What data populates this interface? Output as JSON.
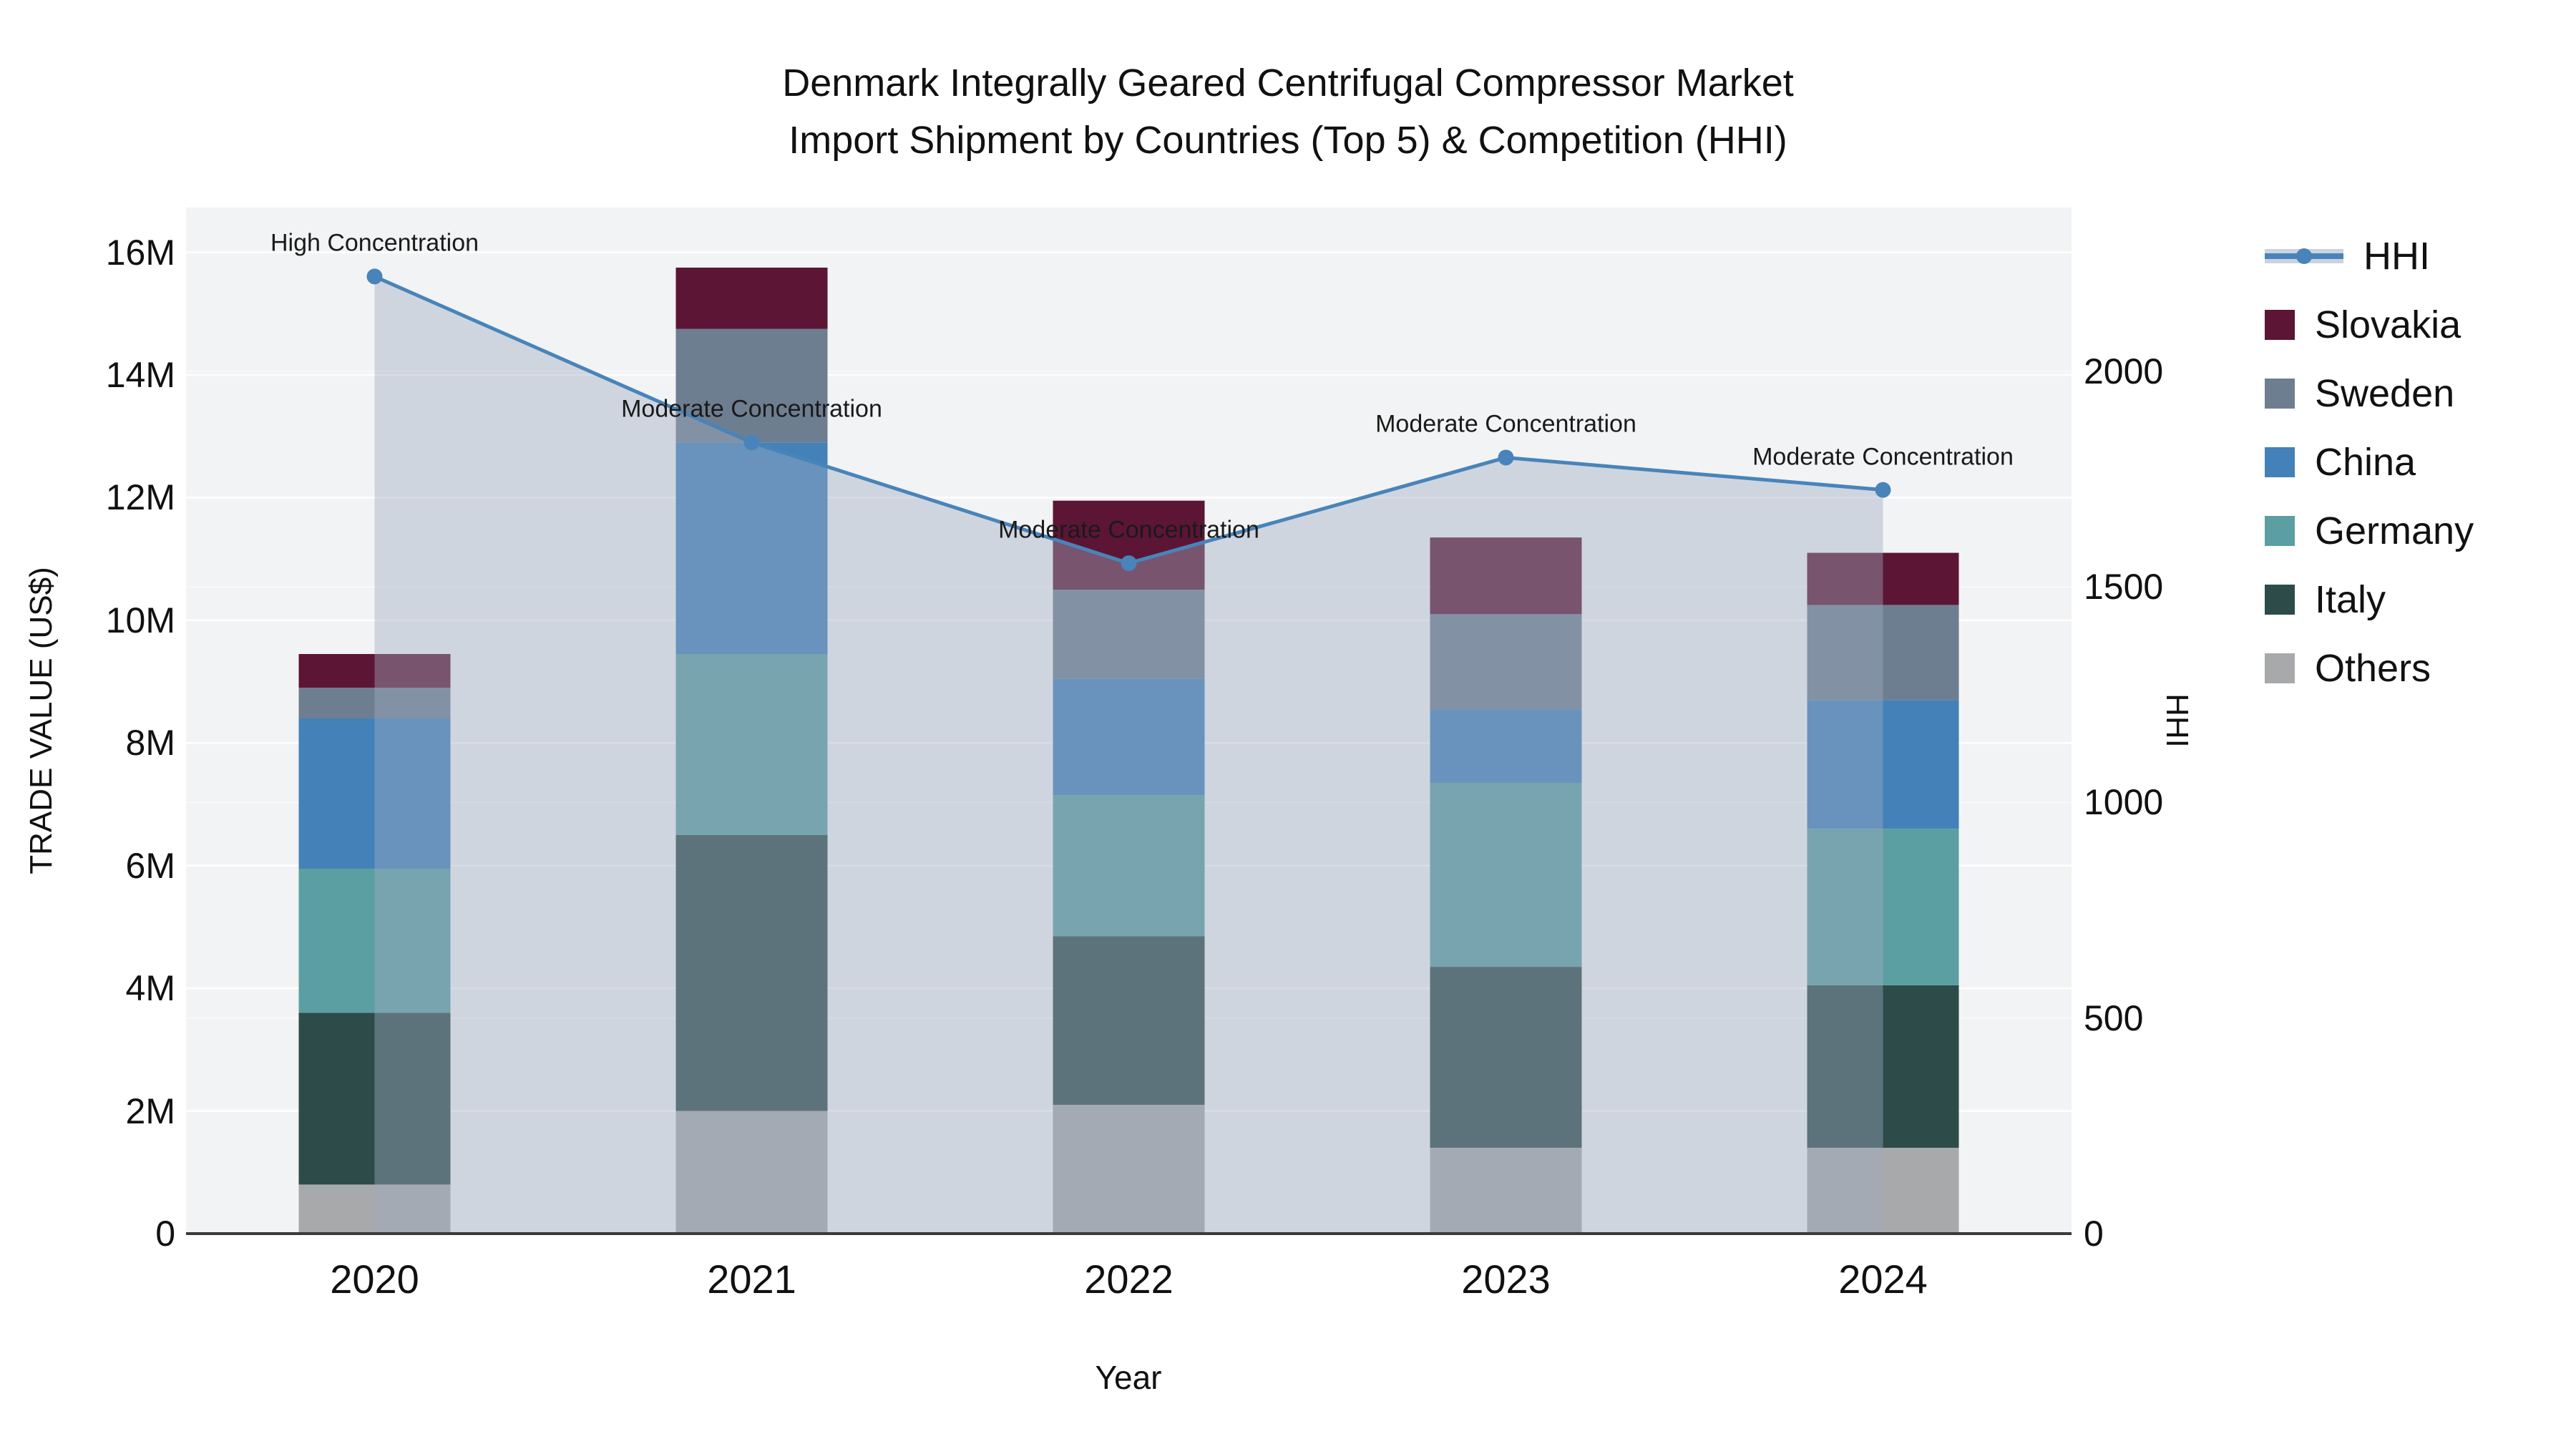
{
  "title": {
    "line1": "Denmark Integrally Geared Centrifugal Compressor Market",
    "line2": "Import Shipment by Countries (Top 5) & Competition (HHI)"
  },
  "axis": {
    "x_title": "Year",
    "x_ticks": [
      "2020",
      "2021",
      "2022",
      "2023",
      "2024"
    ],
    "y_left_title": "TRADE VALUE (US$)",
    "y_left_ticks": [
      "0",
      "2M",
      "4M",
      "6M",
      "8M",
      "10M",
      "12M",
      "14M",
      "16M"
    ],
    "y_right_title": "HHI",
    "y_right_ticks": [
      "0",
      "500",
      "1000",
      "1500",
      "2000"
    ]
  },
  "legend": {
    "items": [
      {
        "label": "HHI",
        "swatch": "hhi-line",
        "color": "#4884ba"
      },
      {
        "label": "Slovakia",
        "swatch": "square",
        "color": "#5c1535"
      },
      {
        "label": "Sweden",
        "swatch": "square",
        "color": "#6e7e91"
      },
      {
        "label": "China",
        "swatch": "square",
        "color": "#4381b8"
      },
      {
        "label": "Germany",
        "swatch": "square",
        "color": "#5c9fa2"
      },
      {
        "label": "Italy",
        "swatch": "square",
        "color": "#2d4b49"
      },
      {
        "label": "Others",
        "swatch": "square",
        "color": "#a8a9ab"
      }
    ]
  },
  "annotations": [
    {
      "year": "2020",
      "text": "High Concentration"
    },
    {
      "year": "2021",
      "text": "Moderate Concentration"
    },
    {
      "year": "2022",
      "text": "Moderate Concentration"
    },
    {
      "year": "2023",
      "text": "Moderate Concentration"
    },
    {
      "year": "2024",
      "text": "Moderate Concentration"
    }
  ],
  "chart_data": {
    "type": "bar",
    "subtype": "stacked-bars-with-secondary-axis-line",
    "title": "Denmark Integrally Geared Centrifugal Compressor Market Import Shipment by Countries (Top 5) & Competition (HHI)",
    "categories": [
      "2020",
      "2021",
      "2022",
      "2023",
      "2024"
    ],
    "xlabel": "Year",
    "ylabel_left": "TRADE VALUE (US$)",
    "ylabel_right": "HHI",
    "bar_value_unit": "US$ millions",
    "series": [
      {
        "name": "Slovakia",
        "color": "#5c1535",
        "values": [
          0.55,
          1.0,
          1.45,
          1.25,
          0.85
        ]
      },
      {
        "name": "Sweden",
        "color": "#6e7e91",
        "values": [
          0.5,
          1.85,
          1.45,
          1.55,
          1.55
        ]
      },
      {
        "name": "China",
        "color": "#4381b8",
        "values": [
          2.45,
          3.45,
          1.9,
          1.2,
          2.1
        ]
      },
      {
        "name": "Germany",
        "color": "#5c9fa2",
        "values": [
          2.35,
          2.95,
          2.3,
          3.0,
          2.55
        ]
      },
      {
        "name": "Italy",
        "color": "#2d4b49",
        "values": [
          2.8,
          4.5,
          2.75,
          2.95,
          2.65
        ]
      },
      {
        "name": "Others",
        "color": "#a8a9ab",
        "values": [
          0.8,
          2.0,
          2.1,
          1.4,
          1.4
        ]
      }
    ],
    "stack_order_bottom_to_top": [
      "Others",
      "Italy",
      "Germany",
      "China",
      "Sweden",
      "Slovakia"
    ],
    "stack_totals": [
      9.45,
      15.75,
      11.95,
      11.35,
      11.1
    ],
    "line_series": {
      "name": "HHI",
      "axis": "right",
      "color": "#4884ba",
      "area_fill": "rgba(160,172,194,0.42)",
      "values": [
        2220,
        1835,
        1555,
        1800,
        1725
      ]
    },
    "y_left_range": [
      0,
      16.73
    ],
    "y_right_range": [
      0,
      2380
    ],
    "grid": true,
    "legend_position": "right"
  },
  "colors": {
    "plot_bg": "#f2f3f4",
    "grid": "#ffffff",
    "axis_line": "#3a3a3a",
    "area_fill": "rgba(160,172,194,0.42)",
    "hhi_line": "#4884ba",
    "text": "#111111"
  }
}
